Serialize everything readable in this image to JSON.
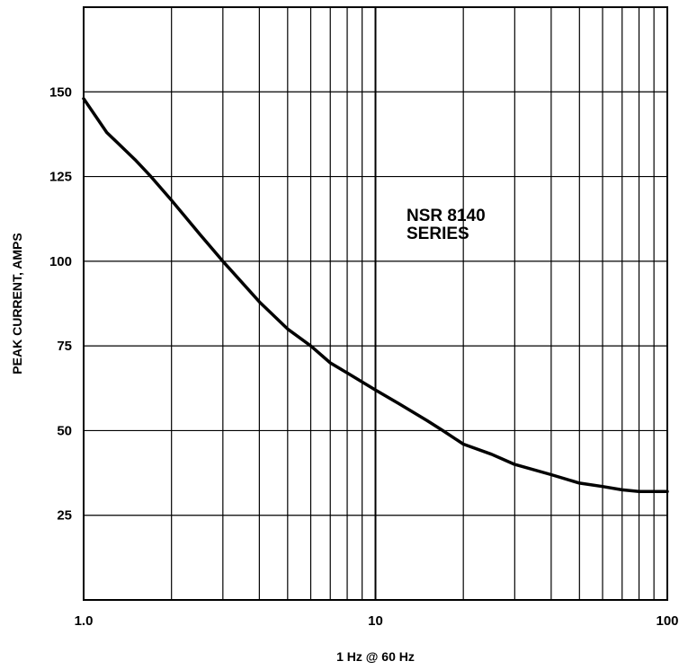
{
  "chart_data": {
    "type": "line",
    "xlabel": "1 Hz @ 60 Hz",
    "ylabel": "PEAK CURRENT, AMPS",
    "x_scale": "log",
    "xlim": [
      1,
      100
    ],
    "ylim": [
      0,
      175
    ],
    "grid": true,
    "x_ticks": [
      {
        "value": 1,
        "label": "1.0"
      },
      {
        "value": 10,
        "label": "10"
      },
      {
        "value": 100,
        "label": "100"
      }
    ],
    "y_ticks": [
      25,
      50,
      75,
      100,
      125,
      150
    ],
    "annotation": [
      "NSR 8140",
      "SERIES"
    ],
    "series": [
      {
        "color": "#000000",
        "x": [
          1.0,
          1.2,
          1.5,
          1.7,
          2.0,
          2.5,
          3.0,
          4.0,
          5.0,
          6.0,
          7.0,
          8.0,
          10.0,
          12.0,
          15.0,
          17.0,
          20.0,
          25.0,
          30.0,
          40.0,
          50.0,
          60.0,
          70.0,
          80.0,
          90.0,
          100.0
        ],
        "y": [
          148,
          138,
          130,
          125,
          118,
          108,
          100,
          88,
          80,
          75,
          70,
          67,
          62,
          58,
          53,
          50,
          46,
          43,
          40,
          37,
          34.5,
          33.5,
          32.5,
          32,
          32,
          32
        ]
      }
    ]
  }
}
